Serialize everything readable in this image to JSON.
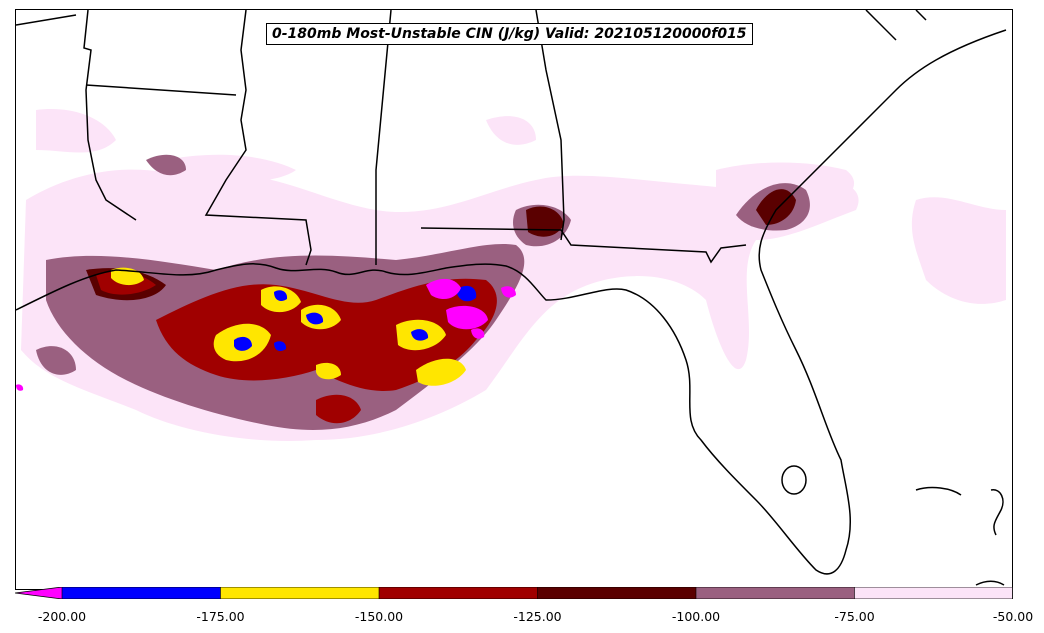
{
  "title": "0-180mb Most-Unstable CIN (J/kg) Valid: 202105120000f015",
  "colorbar": {
    "ticks": [
      "-200.00",
      "-175.00",
      "-150.00",
      "-125.00",
      "-100.00",
      "-75.00",
      "-50.00"
    ],
    "extend": "min",
    "levels": [
      {
        "range": [
          -999,
          -200
        ],
        "color": "#ff00ff"
      },
      {
        "range": [
          -200,
          -175
        ],
        "color": "#0000ff"
      },
      {
        "range": [
          -175,
          -150
        ],
        "color": "#ffe600"
      },
      {
        "range": [
          -150,
          -125
        ],
        "color": "#a00000"
      },
      {
        "range": [
          -125,
          -100
        ],
        "color": "#5a0000"
      },
      {
        "range": [
          -100,
          -75
        ],
        "color": "#9a6080"
      },
      {
        "range": [
          -75,
          -50
        ],
        "color": "#fce4f8"
      }
    ]
  },
  "map": {
    "region": "Southeastern United States and Gulf of Mexico",
    "colors": {
      "coast": "#000000",
      "background": "#ffffff"
    }
  }
}
